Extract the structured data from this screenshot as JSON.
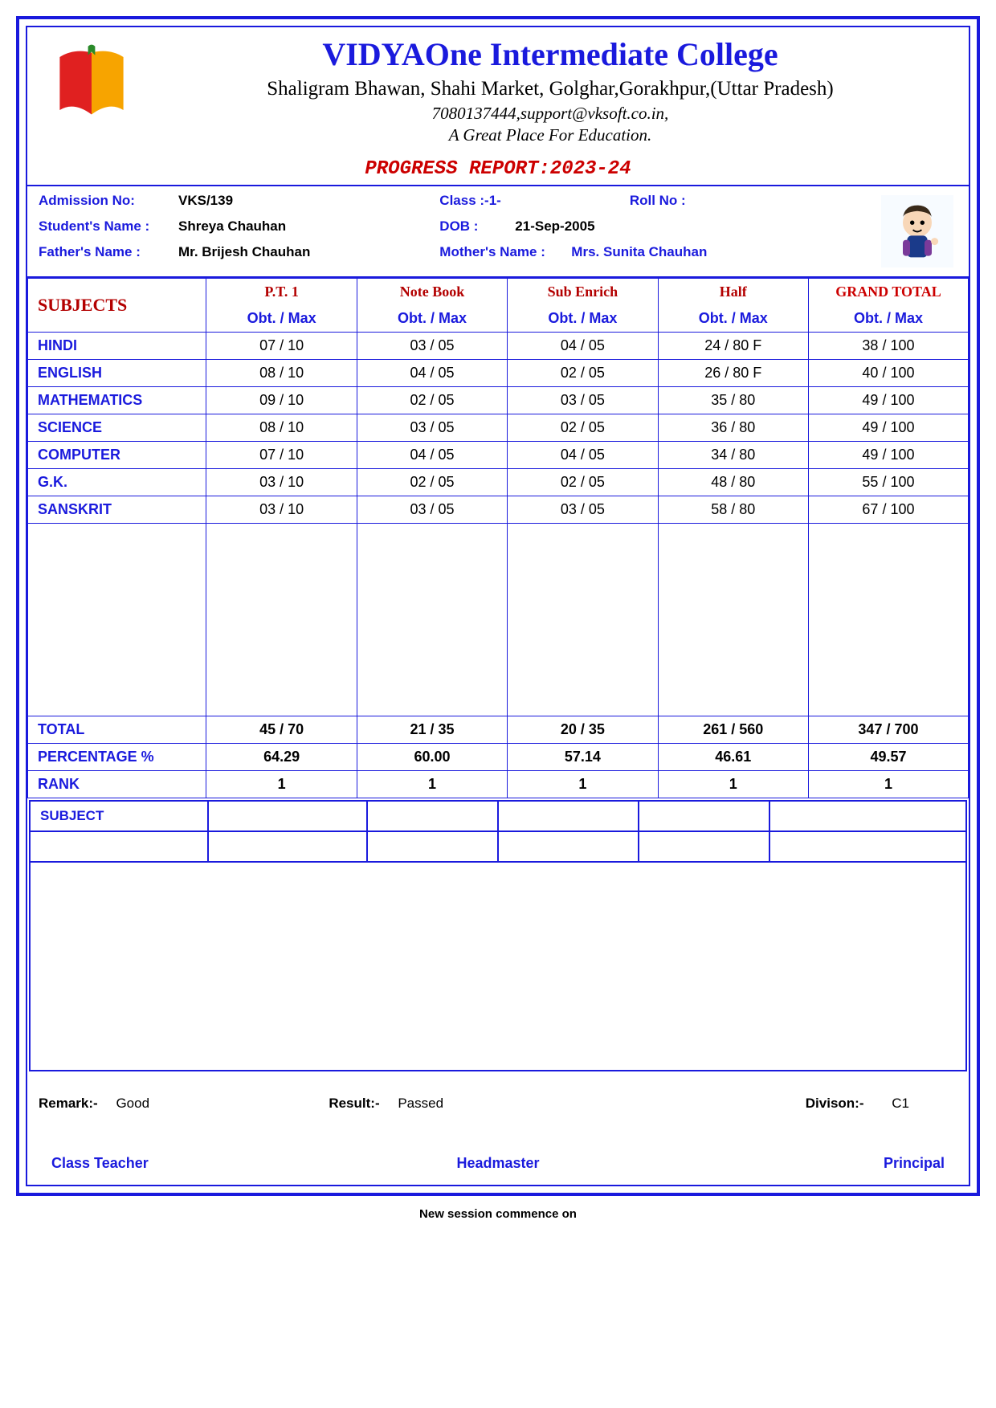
{
  "school": {
    "name": "VIDYAOne Intermediate College",
    "address": "Shaligram Bhawan, Shahi Market, Golghar,Gorakhpur,(Uttar Pradesh)",
    "contact": "7080137444,support@vksoft.co.in,",
    "tagline": "A Great Place For Education.",
    "report_title": "PROGRESS REPORT:2023-24"
  },
  "student": {
    "admission_label": "Admission No:",
    "admission_no": "VKS/139",
    "class_label": "Class  :-1-",
    "roll_label": "Roll No :",
    "roll_no": "",
    "name_label": "Student's Name  :",
    "name": "Shreya Chauhan",
    "dob_label": "DOB   :",
    "dob": "21-Sep-2005",
    "father_label": "Father's Name   :",
    "father": "Mr. Brijesh Chauhan",
    "mother_label": "Mother's Name  :",
    "mother": "Mrs. Sunita Chauhan"
  },
  "table": {
    "subjects_header": "SUBJECTS",
    "columns": [
      "P.T. 1",
      "Note Book",
      "Sub Enrich",
      "Half",
      "GRAND TOTAL"
    ],
    "obt_max": "Obt. / Max",
    "rows": [
      {
        "subject": "HINDI",
        "pt1": "07 / 10",
        "nb": "03 / 05",
        "se": "04 / 05",
        "half": "24 / 80  F",
        "total": "38 / 100"
      },
      {
        "subject": "ENGLISH",
        "pt1": "08 / 10",
        "nb": "04 / 05",
        "se": "02 / 05",
        "half": "26 / 80  F",
        "total": "40 / 100"
      },
      {
        "subject": "MATHEMATICS",
        "pt1": "09 / 10",
        "nb": "02 / 05",
        "se": "03 / 05",
        "half": "35 / 80",
        "total": "49 / 100"
      },
      {
        "subject": "SCIENCE",
        "pt1": "08 / 10",
        "nb": "03 / 05",
        "se": "02 / 05",
        "half": "36 / 80",
        "total": "49 / 100"
      },
      {
        "subject": "COMPUTER",
        "pt1": "07 / 10",
        "nb": "04 / 05",
        "se": "04 / 05",
        "half": "34 / 80",
        "total": "49 / 100"
      },
      {
        "subject": "G.K.",
        "pt1": "03 / 10",
        "nb": "02 / 05",
        "se": "02 / 05",
        "half": "48 / 80",
        "total": "55 / 100"
      },
      {
        "subject": "SANSKRIT",
        "pt1": "03 / 10",
        "nb": "03 / 05",
        "se": "03 / 05",
        "half": "58 / 80",
        "total": "67 / 100"
      }
    ],
    "summary": {
      "total_label": "TOTAL",
      "total": [
        "45 / 70",
        "21 / 35",
        "20 / 35",
        "261 / 560",
        "347 / 700"
      ],
      "pct_label": "PERCENTAGE %",
      "pct": [
        "64.29",
        "60.00",
        "57.14",
        "46.61",
        "49.57"
      ],
      "rank_label": "RANK",
      "rank": [
        "1",
        "1",
        "1",
        "1",
        "1"
      ]
    }
  },
  "extra": {
    "subject_label": "SUBJECT"
  },
  "remarks": {
    "remark_label": "Remark:-",
    "remark": "Good",
    "result_label": "Result:-",
    "result": "Passed",
    "division_label": "Divison:-",
    "division": "C1"
  },
  "signatures": {
    "class_teacher": "Class Teacher",
    "headmaster": "Headmaster",
    "principal": "Principal"
  },
  "footer": "New session commence on",
  "colors": {
    "primary": "#1a1add",
    "accent_red": "#cc0000",
    "dark_red": "#b30000",
    "text": "#000000",
    "bg": "#ffffff"
  }
}
